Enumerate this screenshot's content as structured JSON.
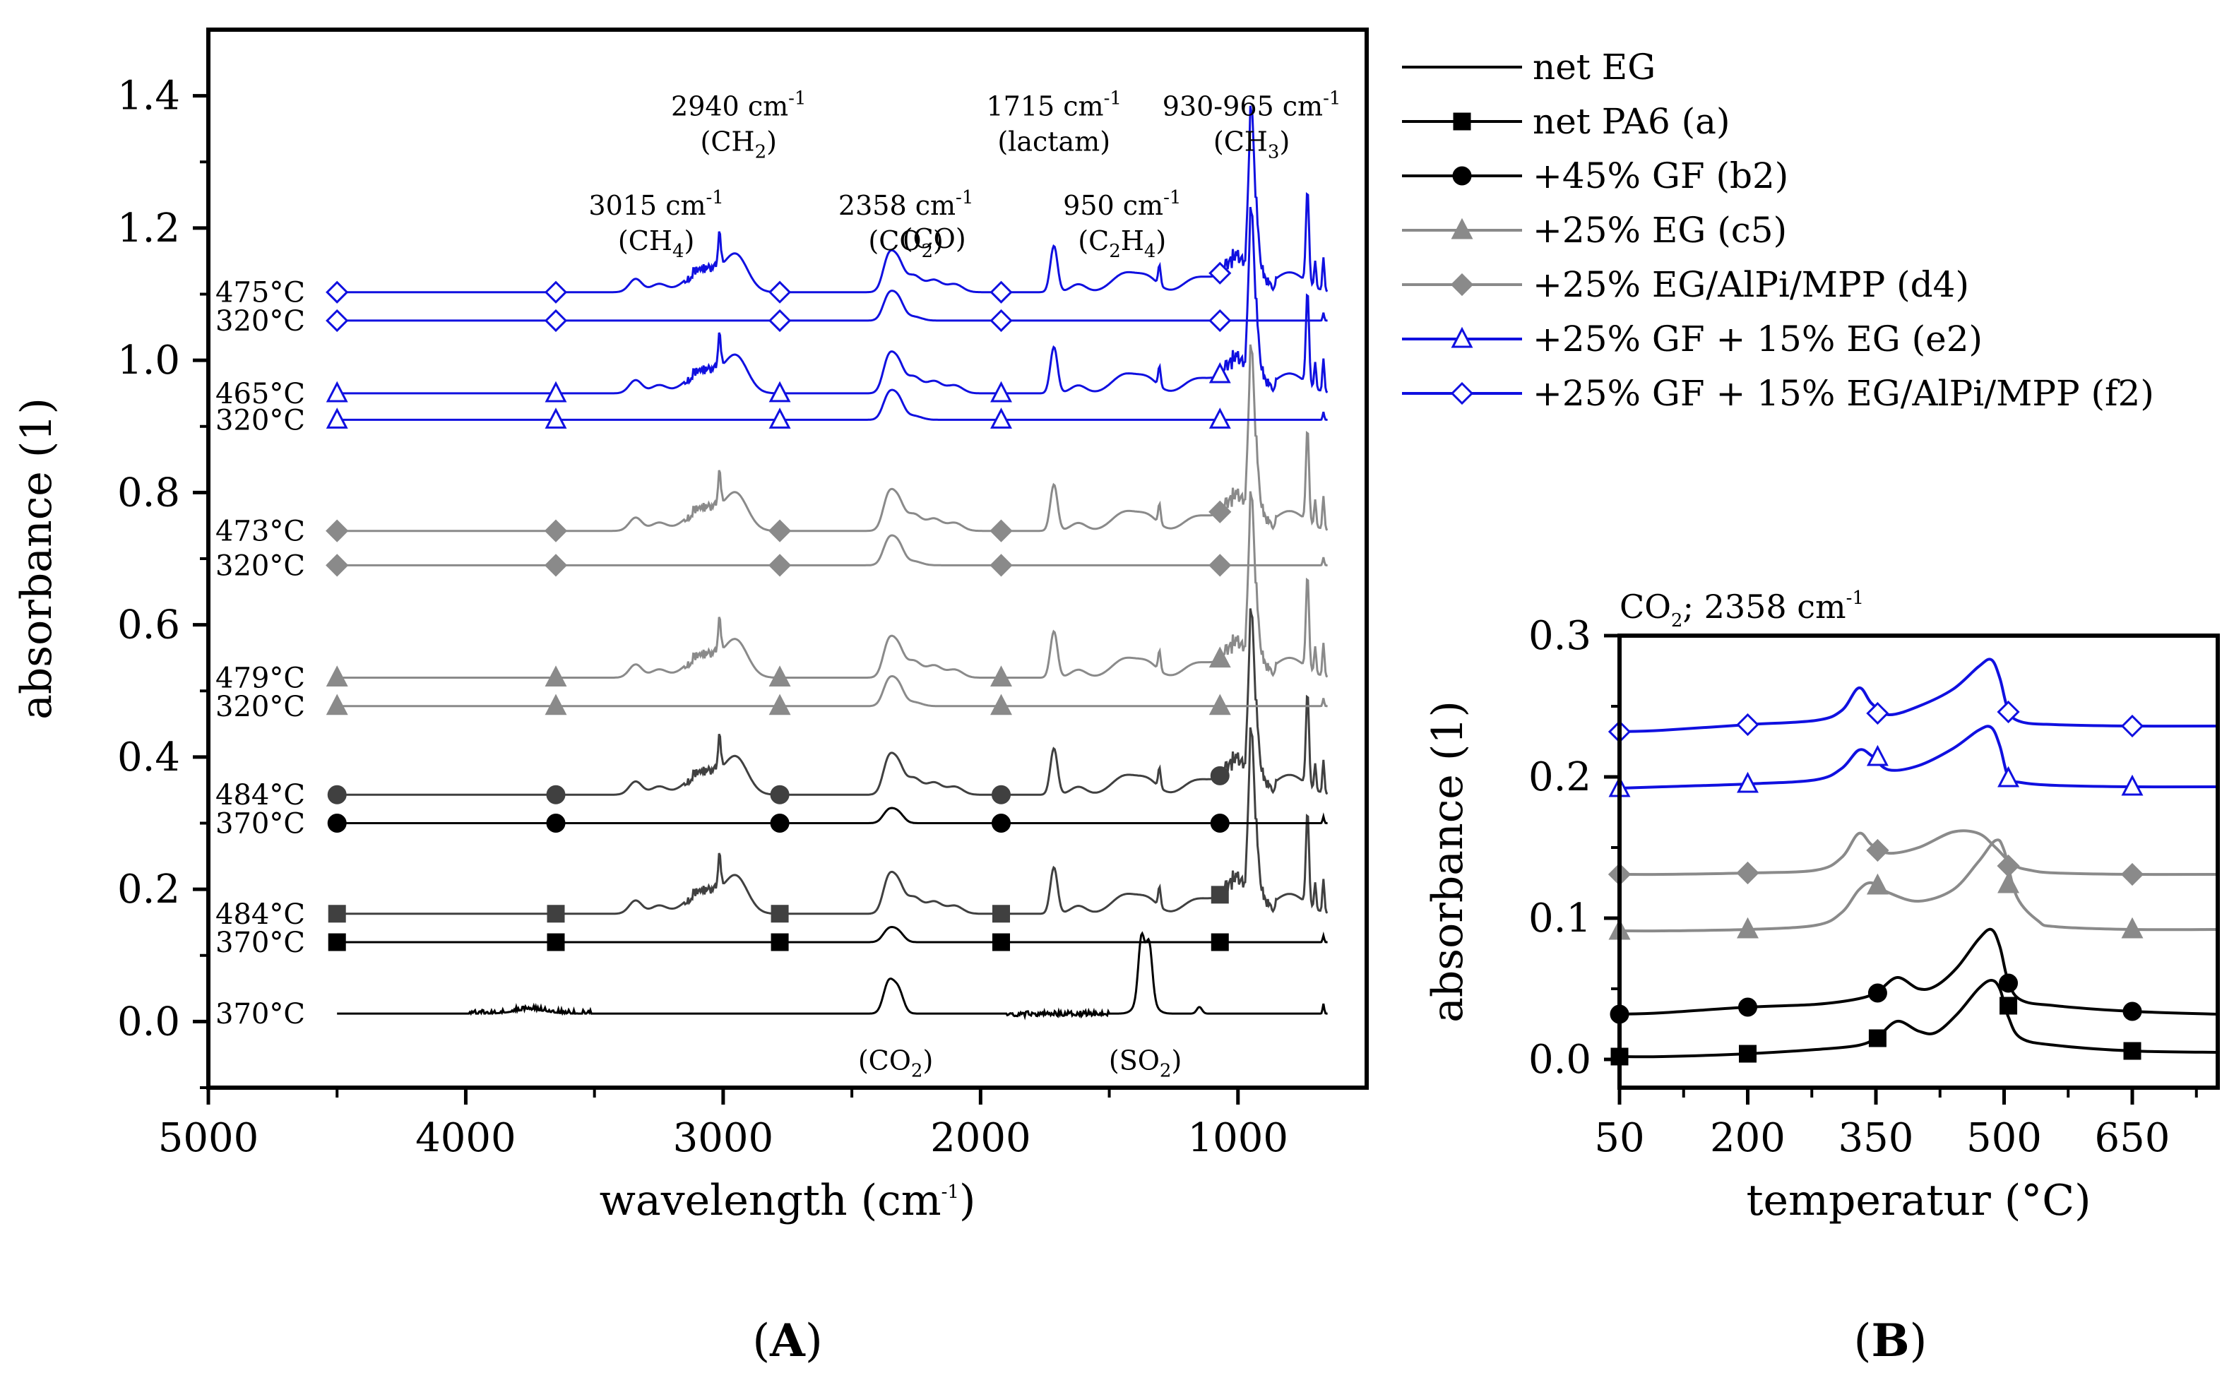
{
  "colors": {
    "black": "#000000",
    "dark": "#404040",
    "gray": "#8a8a8a",
    "blue": "#1010e0"
  },
  "legend": [
    {
      "label": "net EG",
      "color": "#000000",
      "marker": "none"
    },
    {
      "label": "net PA6 (a)",
      "color": "#000000",
      "marker": "square"
    },
    {
      "label": "+45% GF (b2)",
      "color": "#000000",
      "marker": "circle"
    },
    {
      "label": "+25% EG (c5)",
      "color": "#8a8a8a",
      "marker": "triangle"
    },
    {
      "label": "+25% EG/AlPi/MPP (d4)",
      "color": "#8a8a8a",
      "marker": "diamond"
    },
    {
      "label": "+25% GF + 15% EG (e2)",
      "color": "#1010e0",
      "marker": "open-triangle"
    },
    {
      "label": "+25% GF + 15% EG/AlPi/MPP (f2)",
      "color": "#1010e0",
      "marker": "open-diamond"
    }
  ],
  "chart_data": [
    {
      "id": "A",
      "panel_label": "A",
      "type": "line",
      "xlabel": "wavelength (cm",
      "xlabel_sup": "-1",
      "xlabel_end": ")",
      "ylabel": "absorbance (1)",
      "xlim": [
        5000,
        500
      ],
      "ylim": [
        -0.1,
        1.5
      ],
      "xticks": [
        5000,
        4000,
        3000,
        2000,
        1000
      ],
      "yticks": [
        0.0,
        0.2,
        0.4,
        0.6,
        0.8,
        1.0,
        1.2,
        1.4
      ],
      "ytick_labels": [
        "0.0",
        "0.2",
        "0.4",
        "0.6",
        "0.8",
        "1.0",
        "1.2",
        "1.4"
      ],
      "grid": false,
      "marker_x": [
        4500,
        3650,
        2780,
        1920,
        1070
      ],
      "series": [
        {
          "name": "net EG",
          "temp": "370°C",
          "baseline": 0.012,
          "color": "#000000",
          "marker": "none",
          "profile": "eg"
        },
        {
          "name": "net PA6 (a)",
          "temp": "370°C",
          "baseline": 0.12,
          "color": "#000000",
          "marker": "square",
          "profile": "pa_low"
        },
        {
          "name": "net PA6 (a)",
          "temp": "484°C",
          "baseline": 0.163,
          "color": "#404040",
          "marker": "square",
          "profile": "pa_high"
        },
        {
          "name": "+45% GF (b2)",
          "temp": "370°C",
          "baseline": 0.3,
          "color": "#000000",
          "marker": "circle",
          "profile": "pa_low"
        },
        {
          "name": "+45% GF (b2)",
          "temp": "484°C",
          "baseline": 0.343,
          "color": "#404040",
          "marker": "circle",
          "profile": "pa_high"
        },
        {
          "name": "+25% EG (c5)",
          "temp": "320°C",
          "baseline": 0.477,
          "color": "#8a8a8a",
          "marker": "triangle",
          "profile": "co2_low"
        },
        {
          "name": "+25% EG (c5)",
          "temp": "479°C",
          "baseline": 0.52,
          "color": "#8a8a8a",
          "marker": "triangle",
          "profile": "pa_high"
        },
        {
          "name": "+25% EG/AlPi/MPP (d4)",
          "temp": "320°C",
          "baseline": 0.69,
          "color": "#8a8a8a",
          "marker": "diamond",
          "profile": "co2_low"
        },
        {
          "name": "+25% EG/AlPi/MPP (d4)",
          "temp": "473°C",
          "baseline": 0.742,
          "color": "#8a8a8a",
          "marker": "diamond",
          "profile": "pa_high"
        },
        {
          "name": "+25% GF + 15% EG (e2)",
          "temp": "320°C",
          "baseline": 0.91,
          "color": "#1010e0",
          "marker": "open-triangle",
          "profile": "co2_low"
        },
        {
          "name": "+25% GF + 15% EG (e2)",
          "temp": "465°C",
          "baseline": 0.95,
          "color": "#1010e0",
          "marker": "open-triangle",
          "profile": "pa_high"
        },
        {
          "name": "+25% GF + 15% EG/AlPi/MPP (f2)",
          "temp": "320°C",
          "baseline": 1.06,
          "color": "#1010e0",
          "marker": "open-diamond",
          "profile": "co2_low"
        },
        {
          "name": "+25% GF + 15% EG/AlPi/MPP (f2)",
          "temp": "475°C",
          "baseline": 1.103,
          "color": "#1010e0",
          "marker": "open-diamond",
          "profile": "pa_high"
        }
      ],
      "annotations_top": [
        {
          "line1": "2940 cm",
          "sup": "-1",
          "line2": "(CH",
          "sub": "2",
          "line2_end": ")",
          "x": 2940,
          "y": 1.37
        },
        {
          "line1": "1715 cm",
          "sup": "-1",
          "line2": "(lactam)",
          "sub": "",
          "line2_end": "",
          "x": 1715,
          "y": 1.37
        },
        {
          "line1": "930-965 cm",
          "sup": "-1",
          "line2": "(CH",
          "sub": "3",
          "line2_end": ")",
          "x": 947,
          "y": 1.37
        },
        {
          "line1": "3015 cm",
          "sup": "-1",
          "line2": "(CH",
          "sub": "4",
          "line2_end": ")",
          "x": 3260,
          "y": 1.22
        },
        {
          "line1": "2358 cm",
          "sup": "-1",
          "line2": "(CO",
          "sub": "2",
          "line2_end": ")",
          "x": 2290,
          "y": 1.22
        },
        {
          "line1": "950 cm",
          "sup": "-1",
          "line2": "(C",
          "sub": "2",
          "line2_mid": "H",
          "sub2": "4",
          "line2_end": ")",
          "x": 1450,
          "y": 1.22
        }
      ],
      "annotation_co": {
        "text": "(CO)",
        "x": 2180,
        "y": 1.17
      },
      "annotations_bottom": [
        {
          "text": "(CO",
          "sub": "2",
          "end": ")",
          "x": 2330,
          "y": -0.06
        },
        {
          "text": "(SO",
          "sub": "2",
          "end": ")",
          "x": 1360,
          "y": -0.06
        }
      ]
    },
    {
      "id": "B",
      "panel_label": "B",
      "type": "line",
      "title": "CO",
      "title_sub": "2",
      "title_mid": "; 2358 cm",
      "title_sup": "-1",
      "xlabel": "temperatur (°C)",
      "ylabel": "absorbance (1)",
      "xlim": [
        50,
        750
      ],
      "ylim": [
        -0.02,
        0.3
      ],
      "xticks": [
        50,
        200,
        350,
        500,
        650
      ],
      "yticks": [
        0.0,
        0.1,
        0.2,
        0.3
      ],
      "ytick_labels": [
        "0.0",
        "0.1",
        "0.2",
        "0.3"
      ],
      "grid": false,
      "series": [
        {
          "name": "+25% GF + 15% EG/AlPi/MPP (f2)",
          "color": "#1010e0",
          "marker": "open-diamond",
          "x": [
            50,
            100,
            200,
            280,
            310,
            330,
            345,
            365,
            400,
            440,
            470,
            485,
            495,
            505,
            520,
            560,
            650,
            750
          ],
          "y": [
            0.232,
            0.233,
            0.237,
            0.24,
            0.247,
            0.263,
            0.252,
            0.244,
            0.25,
            0.262,
            0.278,
            0.283,
            0.27,
            0.247,
            0.239,
            0.237,
            0.236,
            0.236
          ],
          "markers_x": [
            50,
            200,
            352,
            505,
            650
          ],
          "markers_y": [
            0.232,
            0.237,
            0.245,
            0.246,
            0.236
          ]
        },
        {
          "name": "+25% GF + 15% EG (e2)",
          "color": "#1010e0",
          "marker": "open-triangle",
          "x": [
            50,
            100,
            200,
            280,
            310,
            330,
            345,
            365,
            400,
            440,
            470,
            485,
            495,
            505,
            520,
            560,
            650,
            750
          ],
          "y": [
            0.192,
            0.193,
            0.195,
            0.198,
            0.206,
            0.219,
            0.215,
            0.205,
            0.208,
            0.22,
            0.233,
            0.235,
            0.222,
            0.2,
            0.196,
            0.194,
            0.193,
            0.193
          ],
          "markers_x": [
            50,
            200,
            352,
            505,
            650
          ],
          "markers_y": [
            0.192,
            0.195,
            0.214,
            0.199,
            0.193
          ]
        },
        {
          "name": "+25% EG/AlPi/MPP (d4)",
          "color": "#8a8a8a",
          "marker": "diamond",
          "x": [
            50,
            100,
            200,
            280,
            310,
            330,
            345,
            365,
            400,
            440,
            470,
            490,
            510,
            530,
            560,
            650,
            750
          ],
          "y": [
            0.131,
            0.131,
            0.132,
            0.134,
            0.143,
            0.16,
            0.152,
            0.146,
            0.15,
            0.161,
            0.16,
            0.15,
            0.138,
            0.134,
            0.132,
            0.131,
            0.131
          ],
          "markers_x": [
            50,
            200,
            352,
            505,
            650
          ],
          "markers_y": [
            0.131,
            0.132,
            0.148,
            0.137,
            0.131
          ]
        },
        {
          "name": "+25% EG (c5)",
          "color": "#8a8a8a",
          "marker": "triangle",
          "x": [
            50,
            100,
            200,
            280,
            310,
            330,
            345,
            365,
            400,
            440,
            470,
            490,
            500,
            515,
            540,
            560,
            650,
            750
          ],
          "y": [
            0.091,
            0.091,
            0.092,
            0.095,
            0.104,
            0.12,
            0.125,
            0.118,
            0.112,
            0.12,
            0.14,
            0.155,
            0.148,
            0.115,
            0.098,
            0.094,
            0.092,
            0.092
          ],
          "markers_x": [
            50,
            200,
            352,
            505,
            650
          ],
          "markers_y": [
            0.091,
            0.092,
            0.123,
            0.124,
            0.092
          ]
        },
        {
          "name": "+45% GF (b2)",
          "color": "#000000",
          "marker": "circle",
          "x": [
            50,
            100,
            200,
            280,
            330,
            352,
            375,
            400,
            420,
            445,
            470,
            485,
            495,
            505,
            520,
            560,
            650,
            750
          ],
          "y": [
            0.032,
            0.033,
            0.037,
            0.039,
            0.043,
            0.048,
            0.058,
            0.05,
            0.052,
            0.065,
            0.085,
            0.092,
            0.08,
            0.055,
            0.042,
            0.038,
            0.034,
            0.032
          ],
          "markers_x": [
            50,
            200,
            352,
            505,
            650
          ],
          "markers_y": [
            0.032,
            0.037,
            0.047,
            0.054,
            0.034
          ]
        },
        {
          "name": "net PA6 (a)",
          "color": "#000000",
          "marker": "square",
          "x": [
            50,
            100,
            200,
            280,
            330,
            352,
            375,
            400,
            420,
            445,
            470,
            485,
            495,
            505,
            520,
            560,
            650,
            750
          ],
          "y": [
            0.002,
            0.002,
            0.004,
            0.007,
            0.01,
            0.016,
            0.027,
            0.02,
            0.019,
            0.032,
            0.05,
            0.056,
            0.05,
            0.03,
            0.015,
            0.01,
            0.006,
            0.005
          ],
          "markers_x": [
            50,
            200,
            352,
            505,
            650
          ],
          "markers_y": [
            0.002,
            0.004,
            0.015,
            0.038,
            0.006
          ]
        }
      ]
    }
  ]
}
